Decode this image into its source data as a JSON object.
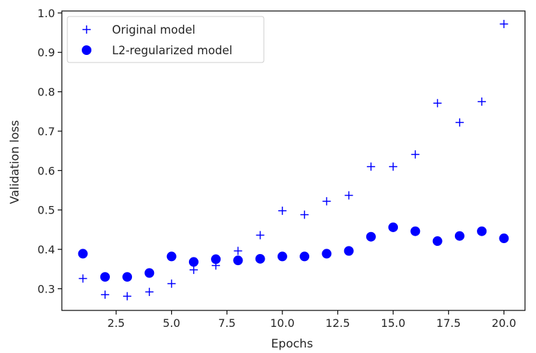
{
  "chart_data": {
    "type": "scatter",
    "title": "",
    "xlabel": "Epochs",
    "ylabel": "Validation loss",
    "xlim": [
      0.05,
      20.95
    ],
    "ylim": [
      0.245,
      1.005
    ],
    "xticks": [
      2.5,
      5.0,
      7.5,
      10.0,
      12.5,
      15.0,
      17.5,
      20.0
    ],
    "xtick_labels": [
      "2.5",
      "5.0",
      "7.5",
      "10.0",
      "12.5",
      "15.0",
      "17.5",
      "20.0"
    ],
    "yticks": [
      0.3,
      0.4,
      0.5,
      0.6,
      0.7,
      0.8,
      0.9,
      1.0
    ],
    "ytick_labels": [
      "0.3",
      "0.4",
      "0.5",
      "0.6",
      "0.7",
      "0.8",
      "0.9",
      "1.0"
    ],
    "grid": false,
    "legend_position": "top-left",
    "x": [
      1,
      2,
      3,
      4,
      5,
      6,
      7,
      8,
      9,
      10,
      11,
      12,
      13,
      14,
      15,
      16,
      17,
      18,
      19,
      20
    ],
    "series": [
      {
        "name": "Original model",
        "marker": "plus",
        "color": "#0000ff",
        "values": [
          0.326,
          0.285,
          0.281,
          0.292,
          0.313,
          0.348,
          0.359,
          0.396,
          0.436,
          0.498,
          0.488,
          0.522,
          0.537,
          0.61,
          0.61,
          0.641,
          0.771,
          0.722,
          0.775,
          0.972
        ]
      },
      {
        "name": "L2-regularized model",
        "marker": "circle",
        "color": "#0000ff",
        "values": [
          0.389,
          0.33,
          0.33,
          0.34,
          0.382,
          0.368,
          0.375,
          0.372,
          0.376,
          0.382,
          0.382,
          0.389,
          0.396,
          0.432,
          0.456,
          0.446,
          0.421,
          0.434,
          0.446,
          0.428
        ]
      }
    ]
  }
}
